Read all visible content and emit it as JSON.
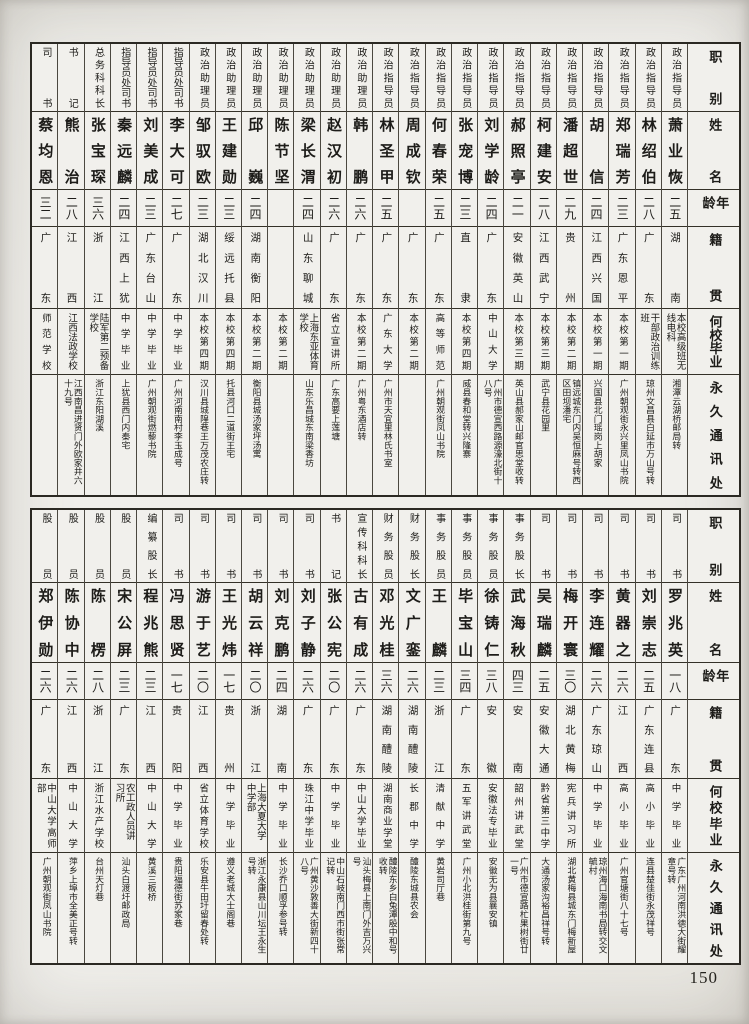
{
  "page": {
    "number": "150"
  },
  "headers": [
    "职别",
    "姓名",
    "年龄",
    "籍贯",
    "何校毕业",
    "永久通讯处"
  ],
  "tables": [
    {
      "columns": [
        {
          "position": "政治指导员",
          "name": "萧业恢",
          "age": "二五",
          "origin": "湖南",
          "school": "本校高级班无线电科",
          "address": "湘潭云湖桥邮局转"
        },
        {
          "position": "政治指导员",
          "name": "林绍伯",
          "age": "二八",
          "origin": "广东",
          "school": "干部政治训练班",
          "address": "琼州文昌县白延市万山号转"
        },
        {
          "position": "政治指导员",
          "name": "郑瑞芳",
          "age": "二三",
          "origin": "广东恩平",
          "school": "本校第一期",
          "address": "广州朝观街永兴里凤山书院"
        },
        {
          "position": "政治指导员",
          "name": "胡信",
          "age": "二四",
          "origin": "江西兴国",
          "school": "本校第一期",
          "address": "兴国县北门瑶岗上胡家"
        },
        {
          "position": "政治指导员",
          "name": "潘超世",
          "age": "二九",
          "origin": "贵州",
          "school": "本校第二期",
          "address": "镇远城东门内吴恒麻号转西区田坝潘宅"
        },
        {
          "position": "政治指导员",
          "name": "柯建安",
          "age": "二八",
          "origin": "江西武宁",
          "school": "本校第三期",
          "address": "武宁县花园里"
        },
        {
          "position": "政治指导员",
          "name": "郝照亭",
          "age": "二一",
          "origin": "安徽英山",
          "school": "本校第三期",
          "address": "英山县郝家山邮官思堂收转"
        },
        {
          "position": "政治指导员",
          "name": "刘学龄",
          "age": "二四",
          "origin": "广东",
          "school": "中山大学",
          "address": "广州市德宣西路源濠北街十八号"
        },
        {
          "position": "政治指导员",
          "name": "张宠博",
          "age": "二三",
          "origin": "直隶",
          "school": "本校第四期",
          "address": "威县春和堂转兴隆寨"
        },
        {
          "position": "政治指导员",
          "name": "何春荣",
          "age": "二五",
          "origin": "广东",
          "school": "高等师范",
          "address": "广州朝观街凤山书院"
        },
        {
          "position": "政治指导员",
          "name": "周成钦",
          "age": "",
          "origin": "广东",
          "school": "本校第二期",
          "address": ""
        },
        {
          "position": "政治指导员",
          "name": "林圣甲",
          "age": "二五",
          "origin": "广东",
          "school": "广东大学",
          "address": "广州市天宜里林氏书室"
        },
        {
          "position": "政治助理员",
          "name": "韩鹏",
          "age": "二六",
          "origin": "广东",
          "school": "本校第二期",
          "address": "广州粤东酒店转"
        },
        {
          "position": "政治助理员",
          "name": "赵汉初",
          "age": "二六",
          "origin": "广东",
          "school": "省立宣讲所",
          "address": "广东高要上莲塘"
        },
        {
          "position": "政治助理员",
          "name": "梁长渭",
          "age": "二四",
          "origin": "山东聊城",
          "school": "上海东亚体育学校",
          "address": "山东乐昌城东南梁香坊"
        },
        {
          "position": "政治助理员",
          "name": "陈节坚",
          "age": "",
          "origin": "",
          "school": "本校第二期",
          "address": ""
        },
        {
          "position": "政治助理员",
          "name": "邱巍",
          "age": "二四",
          "origin": "湖南衡阳",
          "school": "本校第二期",
          "address": "衡阳县城汤家坪汤寓"
        },
        {
          "position": "政治助理员",
          "name": "王建勋",
          "age": "二三",
          "origin": "绥远托县",
          "school": "本校第四期",
          "address": "托县河口二道街王宅"
        },
        {
          "position": "政治助理员",
          "name": "邹驭欧",
          "age": "二三",
          "origin": "湖北汉川",
          "school": "本校第四期",
          "address": "汉川县城隍巷王万茂农庄转"
        },
        {
          "position": "指导员处司书",
          "name": "李大可",
          "age": "二七",
          "origin": "广东",
          "school": "中学毕业",
          "address": "广州河南南村李玉成号"
        },
        {
          "position": "指导员处司书",
          "name": "刘美成",
          "age": "二三",
          "origin": "广东台山",
          "school": "中学毕业",
          "address": "广州朝观街燃藜书院"
        },
        {
          "position": "指导员处司书",
          "name": "秦远麟",
          "age": "二四",
          "origin": "江西上犹",
          "school": "中学毕业",
          "address": "上犹县西门内秦宅"
        },
        {
          "position": "总务科科长",
          "name": "张宝琛",
          "age": "三六",
          "origin": "浙江",
          "school": "陆军第二预备学校",
          "address": "浙江东阳湖溪"
        },
        {
          "position": "书记",
          "name": "熊治",
          "age": "二八",
          "origin": "江西",
          "school": "江西法政学校",
          "address": "江西南昌进贤门外欧家井六十九号"
        },
        {
          "position": "司书",
          "name": "蔡均恩",
          "age": "三二",
          "origin": "广东",
          "school": "师范学校",
          "address": ""
        }
      ]
    },
    {
      "columns": [
        {
          "position": "司书",
          "name": "罗兆英",
          "age": "一八",
          "origin": "广东",
          "school": "中学毕业",
          "address": "广东广州河南洪德大街耀章号转"
        },
        {
          "position": "司书",
          "name": "刘崇志",
          "age": "二五",
          "origin": "广东连县",
          "school": "高小毕业",
          "address": "连县楚佳街永茂祥号"
        },
        {
          "position": "司书",
          "name": "黄器之",
          "age": "二六",
          "origin": "江西",
          "school": "高小毕业",
          "address": "广州官塘街八十七号"
        },
        {
          "position": "司书",
          "name": "李连耀",
          "age": "二六",
          "origin": "广东琼山",
          "school": "中学毕业",
          "address": "琼州海口海南书局转交文毓村"
        },
        {
          "position": "司书",
          "name": "梅开寰",
          "age": "三〇",
          "origin": "湖北黄梅",
          "school": "宪兵讲习所",
          "address": "湖北黄梅县城东门梅新屋"
        },
        {
          "position": "司书",
          "name": "吴瑞麟",
          "age": "二五",
          "origin": "安徽大通",
          "school": "黔省第三中学",
          "address": "大通汤家沟裕昌祥号转"
        },
        {
          "position": "事务股长",
          "name": "武海秋",
          "age": "四三",
          "origin": "安南",
          "school": "韶州讲武堂",
          "address": "广州市德宣路杧果树街廿一号"
        },
        {
          "position": "事务股员",
          "name": "徐铸仁",
          "age": "三八",
          "origin": "安徽",
          "school": "安徽法专毕业",
          "address": "安徽无为县襄安镇"
        },
        {
          "position": "事务股员",
          "name": "毕宝山",
          "age": "三四",
          "origin": "广东",
          "school": "五军讲武堂",
          "address": "广州小北洪桂街第九号"
        },
        {
          "position": "事务股员",
          "name": "王麟",
          "age": "二三",
          "origin": "浙江",
          "school": "清献中学",
          "address": "黄岩司厅巷"
        },
        {
          "position": "财务股长",
          "name": "文广銮",
          "age": "二六",
          "origin": "湖南醴陵",
          "school": "长郡中学",
          "address": "醴陵东城县农会"
        },
        {
          "position": "财务股员",
          "name": "邓光桂",
          "age": "三六",
          "origin": "湖南醴陵",
          "school": "湖南商业学堂",
          "address": "醴陵东乡白兔潭殷中和号收转"
        },
        {
          "position": "宣传科科长",
          "name": "古有成",
          "age": "二六",
          "origin": "广东",
          "school": "中山大学毕业",
          "address": "汕头梅县上南门外吉万兴号"
        },
        {
          "position": "书记",
          "name": "张公宪",
          "age": "二〇",
          "origin": "广东",
          "school": "中学毕业",
          "address": "中山石岐南门西市街张常记转"
        },
        {
          "position": "司书",
          "name": "刘子静",
          "age": "二六",
          "origin": "广东",
          "school": "珠江中学毕业",
          "address": "广州黄沙敦善大街新四十八号"
        },
        {
          "position": "司书",
          "name": "刘克鹏",
          "age": "二四",
          "origin": "湖南",
          "school": "中学毕业",
          "address": "长沙乔口顺孚参号转"
        },
        {
          "position": "司书",
          "name": "胡云祥",
          "age": "二〇",
          "origin": "浙江",
          "school": "上海大夏大学中学部",
          "address": "浙江永康县山川坛王永生号转"
        },
        {
          "position": "司书",
          "name": "王光炜",
          "age": "一七",
          "origin": "贵州",
          "school": "中学毕业",
          "address": "遵义老城大士阁巷"
        },
        {
          "position": "司书",
          "name": "游于艺",
          "age": "二〇",
          "origin": "江西",
          "school": "省立体育学校",
          "address": "乐安县牛田圩留春处转"
        },
        {
          "position": "司书",
          "name": "冯思贤",
          "age": "一七",
          "origin": "贵阳",
          "school": "中学毕业",
          "address": "贵阳福德街苏家巷"
        },
        {
          "position": "编纂股长",
          "name": "程兆熊",
          "age": "二三",
          "origin": "江西",
          "school": "中山大学",
          "address": "黄溪三板桥"
        },
        {
          "position": "股员",
          "name": "宋公屏",
          "age": "二三",
          "origin": "广东",
          "school": "农工政人员讲习所",
          "address": "汕头白渡圩邮政局"
        },
        {
          "position": "股员",
          "name": "陈楞",
          "age": "二八",
          "origin": "浙江",
          "school": "浙江水产学校",
          "address": "台州天灯巷"
        },
        {
          "position": "股员",
          "name": "陈协中",
          "age": "二六",
          "origin": "江西",
          "school": "中山大学",
          "address": "萍乡上埠市全美正号转"
        },
        {
          "position": "股员",
          "name": "郑伊勋",
          "age": "二六",
          "origin": "广东",
          "school": "中山大学高师部",
          "address": "广州朝观街凤山书院"
        }
      ]
    }
  ]
}
